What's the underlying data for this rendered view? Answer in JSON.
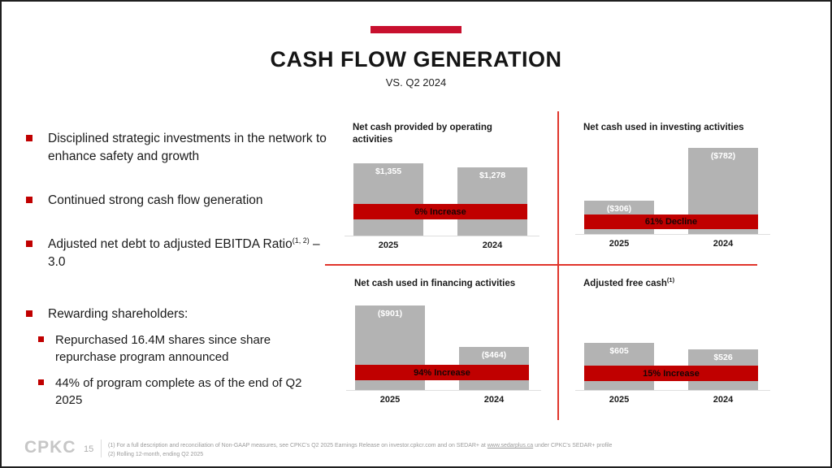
{
  "slide": {
    "title": "CASH FLOW GENERATION",
    "subtitle": "VS. Q2 2024",
    "accent_color": "#c8102e",
    "bar_color": "#b3b3b3",
    "band_color": "#c00000",
    "divider_color": "#e0352b"
  },
  "bullets": {
    "items": [
      {
        "text": "Disciplined strategic investments in the network to enhance safety and growth"
      },
      {
        "text": "Continued strong cash flow generation"
      },
      {
        "text": "Adjusted net debt to adjusted EBITDA Ratio",
        "sup": "(1, 2)",
        "suffix": " – 3.0"
      },
      {
        "text": "Rewarding shareholders:"
      }
    ],
    "sub_items": [
      {
        "text": "Repurchased 16.4M shares since share repurchase program announced"
      },
      {
        "text": "44% of program complete as of the end of Q2 2025"
      }
    ]
  },
  "chart_data": [
    {
      "type": "bar",
      "title": "Net cash provided by operating activities",
      "title_sup": "",
      "categories": [
        "2025",
        "2024"
      ],
      "values": [
        1355,
        1278
      ],
      "value_labels": [
        "$1,355",
        "$1,278"
      ],
      "change_label": "6% Increase",
      "ylim": [
        0,
        1400
      ],
      "grid": false,
      "legend": false
    },
    {
      "type": "bar",
      "title": "Net cash used in investing activities",
      "title_sup": "",
      "categories": [
        "2025",
        "2024"
      ],
      "values": [
        -306,
        -782
      ],
      "value_labels": [
        "($306)",
        "($782)"
      ],
      "change_label": "61% Decline",
      "ylim": [
        -800,
        0
      ],
      "grid": false,
      "legend": false
    },
    {
      "type": "bar",
      "title": "Net cash used in financing activities",
      "title_sup": "",
      "categories": [
        "2025",
        "2024"
      ],
      "values": [
        -901,
        -464
      ],
      "value_labels": [
        "($901)",
        "($464)"
      ],
      "change_label": "94% Increase",
      "ylim": [
        -950,
        0
      ],
      "grid": false,
      "legend": false
    },
    {
      "type": "bar",
      "title": "Adjusted free cash",
      "title_sup": "(1)",
      "categories": [
        "2025",
        "2024"
      ],
      "values": [
        605,
        526
      ],
      "value_labels": [
        "$605",
        "$526"
      ],
      "change_label": "15% Increase",
      "ylim": [
        0,
        650
      ],
      "grid": false,
      "legend": false
    }
  ],
  "footer": {
    "logo": "CPKC",
    "page_number": "15",
    "footnote1_pre": "(1)  For a full description and reconciliation of Non-GAAP measures, see CPKC's Q2 2025 Earnings Release on investor.cpkcr.com and on SEDAR+ at ",
    "footnote1_link": "www.sedarplus.ca",
    "footnote1_post": " under CPKC's SEDAR+ profile",
    "footnote2": "(2)  Rolling 12-month, ending Q2 2025"
  }
}
